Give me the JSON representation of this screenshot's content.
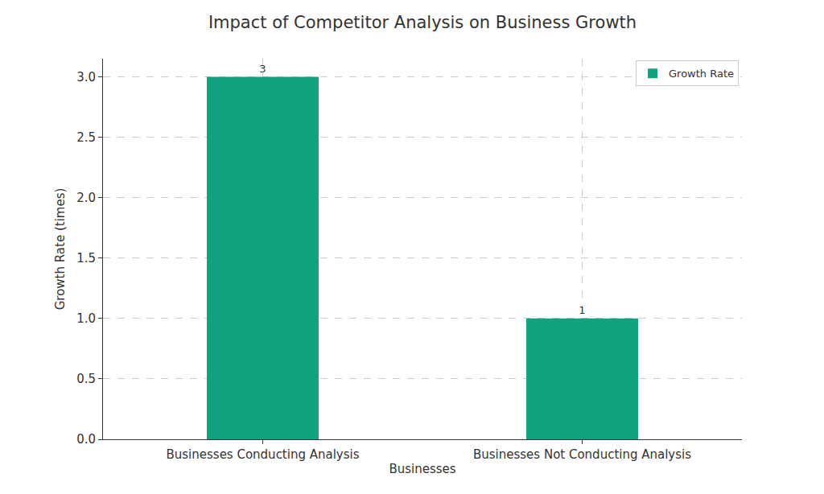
{
  "chart_data": {
    "type": "bar",
    "title": "Impact of Competitor Analysis on Business Growth",
    "x_label": "Businesses",
    "y_label": "Growth Rate (times)",
    "categories": [
      "Businesses Conducting Analysis",
      "Businesses Not Conducting Analysis"
    ],
    "series": [
      {
        "name": "Growth Rate",
        "color": "#10a37f",
        "values": [
          3,
          1
        ]
      }
    ],
    "ylim": [
      0,
      3.15
    ],
    "yticks": [
      {
        "value": 0,
        "label": "0.0"
      },
      0.5,
      {
        "value": 1,
        "label": "1.0"
      },
      1.5,
      {
        "value": 2,
        "label": "2.0"
      },
      2.5,
      {
        "value": 3,
        "label": "3.0"
      }
    ],
    "grid": true,
    "legend": "upper right",
    "data_labels": true
  }
}
